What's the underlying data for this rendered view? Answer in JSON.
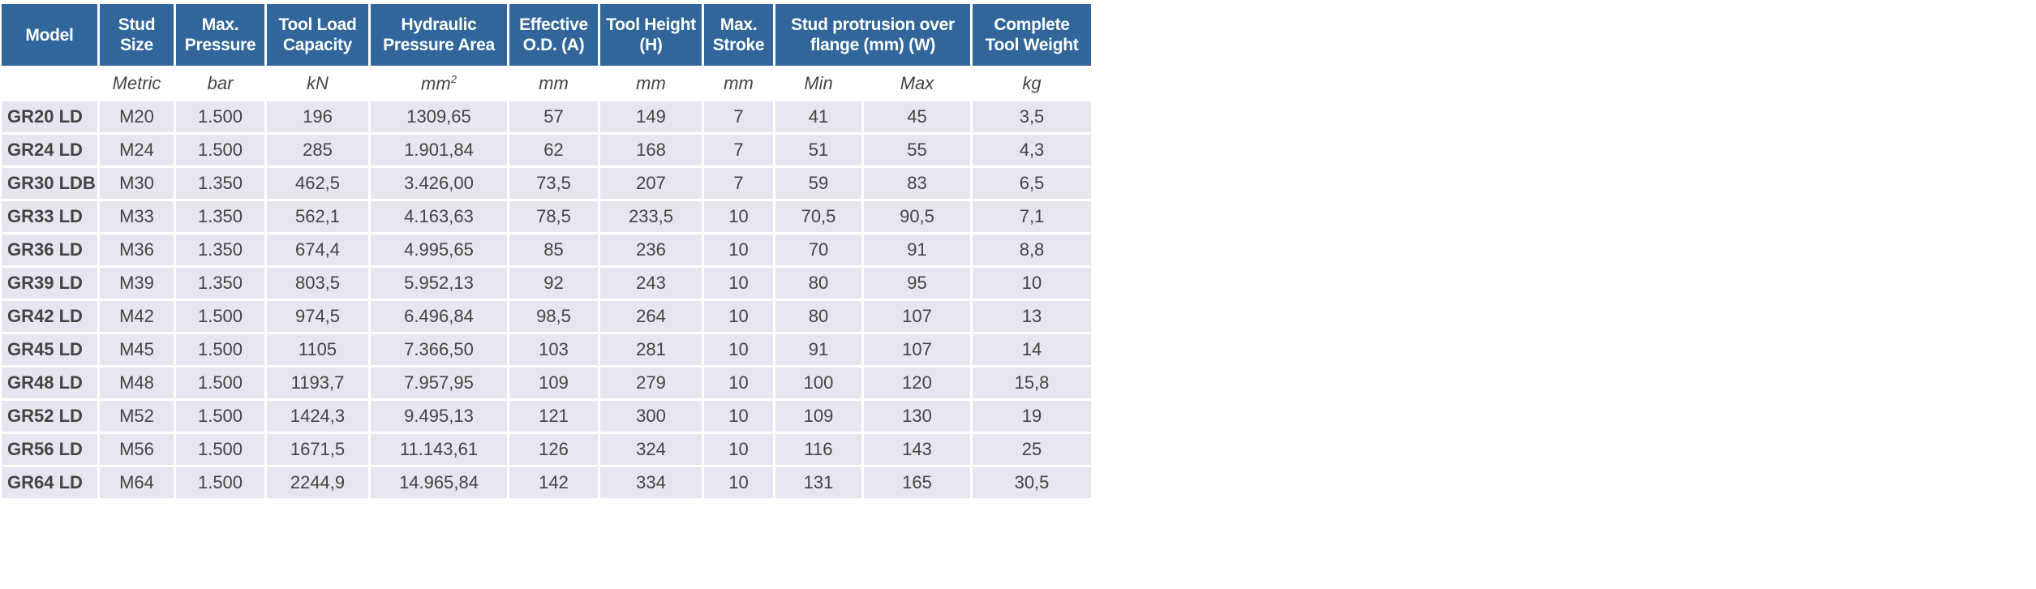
{
  "headers": [
    "Model",
    "Stud Size",
    "Max. Pressure",
    "Tool Load Capacity",
    "Hydraulic Pressure Area",
    "Effective O.D. (A)",
    "Tool Height (H)",
    "Max. Stroke",
    "Stud protrusion over flange (mm) (W)",
    "Complete Tool Weight"
  ],
  "units": [
    "",
    "Metric",
    "bar",
    "kN",
    "mm",
    "2",
    "mm",
    "mm",
    "mm",
    "Min",
    "Max",
    "kg"
  ],
  "rows": [
    [
      "GR20 LD",
      "M20",
      "1.500",
      "196",
      "1309,65",
      "57",
      "149",
      "7",
      "41",
      "45",
      "3,5"
    ],
    [
      "GR24 LD",
      "M24",
      "1.500",
      "285",
      "1.901,84",
      "62",
      "168",
      "7",
      "51",
      "55",
      "4,3"
    ],
    [
      "GR30 LDB",
      "M30",
      "1.350",
      "462,5",
      "3.426,00",
      "73,5",
      "207",
      "7",
      "59",
      "83",
      "6,5"
    ],
    [
      "GR33 LD",
      "M33",
      "1.350",
      "562,1",
      "4.163,63",
      "78,5",
      "233,5",
      "10",
      "70,5",
      "90,5",
      "7,1"
    ],
    [
      "GR36 LD",
      "M36",
      "1.350",
      "674,4",
      "4.995,65",
      "85",
      "236",
      "10",
      "70",
      "91",
      "8,8"
    ],
    [
      "GR39 LD",
      "M39",
      "1.350",
      "803,5",
      "5.952,13",
      "92",
      "243",
      "10",
      "80",
      "95",
      "10"
    ],
    [
      "GR42 LD",
      "M42",
      "1.500",
      "974,5",
      "6.496,84",
      "98,5",
      "264",
      "10",
      "80",
      "107",
      "13"
    ],
    [
      "GR45 LD",
      "M45",
      "1.500",
      "1105",
      "7.366,50",
      "103",
      "281",
      "10",
      "91",
      "107",
      "14"
    ],
    [
      "GR48 LD",
      "M48",
      "1.500",
      "1193,7",
      "7.957,95",
      "109",
      "279",
      "10",
      "100",
      "120",
      "15,8"
    ],
    [
      "GR52 LD",
      "M52",
      "1.500",
      "1424,3",
      "9.495,13",
      "121",
      "300",
      "10",
      "109",
      "130",
      "19"
    ],
    [
      "GR56 LD",
      "M56",
      "1.500",
      "1671,5",
      "11.143,61",
      "126",
      "324",
      "10",
      "116",
      "143",
      "25"
    ],
    [
      "GR64 LD",
      "M64",
      "1.500",
      "2244,9",
      "14.965,84",
      "142",
      "334",
      "10",
      "131",
      "165",
      "30,5"
    ]
  ],
  "colors": {
    "header_bg": "#31669a",
    "row_bg": "#e4e7f0",
    "text": "#444444"
  }
}
